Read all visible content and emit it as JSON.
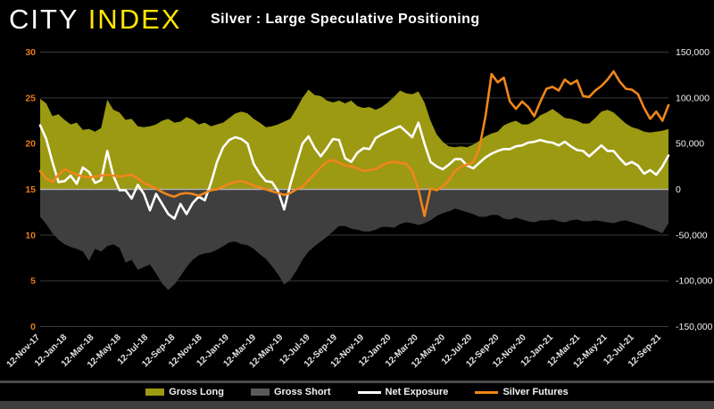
{
  "header": {
    "logo": {
      "city": "CITY",
      "index": "INDEX",
      "city_color": "#ffffff",
      "index_color": "#ffe600"
    },
    "title": "Silver : Large Speculative Positioning"
  },
  "chart_data": {
    "type": "combo",
    "title": "Silver : Large Speculative Positioning",
    "background": "#000000",
    "grid": true,
    "gridline_color": "#3a3a3a",
    "zero_line_color": "#b0b0b0",
    "legend_position": "bottom",
    "x_axis": {
      "tick_label_color": "#e3e3e3",
      "tick_labels": [
        "12-Nov-17",
        "12-Jan-18",
        "12-Mar-18",
        "12-May-18",
        "12-Jul-18",
        "12-Sep-18",
        "12-Nov-18",
        "12-Jan-19",
        "12-Mar-19",
        "12-May-19",
        "12-Jul-19",
        "12-Sep-19",
        "12-Nov-19",
        "12-Jan-20",
        "12-Mar-20",
        "12-May-20",
        "12-Jul-20",
        "12-Sep-20",
        "12-Nov-20",
        "12-Jan-21",
        "12-Mar-21",
        "12-May-21",
        "12-Jul-21",
        "12-Sep-21"
      ]
    },
    "left_axis": {
      "applies_to": "Silver Futures (price)",
      "min": 0,
      "max": 30,
      "tick_labels": [
        "0",
        "5",
        "10",
        "15",
        "20",
        "25",
        "30"
      ],
      "color": "#e87b17"
    },
    "right_axis": {
      "applies_to": "positioning (contracts)",
      "min": -150000,
      "max": 150000,
      "tick_labels": [
        "-150,000",
        "-100,000",
        "-50,000",
        "0",
        "50,000",
        "100,000",
        "150,000"
      ],
      "color": "#f0f0f0"
    },
    "series": [
      {
        "name": "Gross Long",
        "type": "area",
        "axis": "right",
        "color": "#9c9913",
        "unit": "thousand contracts",
        "values_thousands": [
          99,
          94,
          80,
          82,
          76,
          71,
          73,
          65,
          66,
          63,
          67,
          98,
          87,
          84,
          76,
          77,
          69,
          68,
          69,
          71,
          75,
          77,
          73,
          74,
          79,
          76,
          71,
          73,
          69,
          71,
          73,
          78,
          83,
          85,
          83,
          77,
          73,
          68,
          69,
          71,
          74,
          77,
          88,
          100,
          109,
          103,
          102,
          97,
          95,
          97,
          94,
          97,
          91,
          89,
          90,
          87,
          90,
          95,
          101,
          108,
          105,
          104,
          107,
          95,
          75,
          60,
          52,
          47,
          46,
          47,
          46,
          49,
          53,
          58,
          61,
          63,
          70,
          73,
          75,
          71,
          71,
          75,
          81,
          84,
          88,
          83,
          78,
          77,
          75,
          72,
          72,
          78,
          85,
          87,
          84,
          78,
          72,
          68,
          66,
          63,
          62,
          63,
          64,
          66
        ]
      },
      {
        "name": "Gross Short",
        "type": "area",
        "axis": "right",
        "color": "#3f3f3f",
        "legend_color": "#595959",
        "unit": "thousand contracts",
        "values_thousands": [
          -30,
          -38,
          -48,
          -55,
          -60,
          -63,
          -65,
          -68,
          -78,
          -65,
          -68,
          -62,
          -60,
          -64,
          -80,
          -77,
          -88,
          -85,
          -82,
          -92,
          -103,
          -110,
          -104,
          -95,
          -85,
          -77,
          -72,
          -70,
          -69,
          -66,
          -62,
          -58,
          -57,
          -60,
          -61,
          -65,
          -71,
          -76,
          -84,
          -93,
          -104,
          -99,
          -89,
          -77,
          -68,
          -62,
          -57,
          -52,
          -46,
          -40,
          -40,
          -43,
          -44,
          -46,
          -46,
          -44,
          -41,
          -41,
          -42,
          -38,
          -36,
          -37,
          -39,
          -37,
          -34,
          -29,
          -26,
          -24,
          -21,
          -23,
          -25,
          -27,
          -30,
          -30,
          -28,
          -28,
          -32,
          -33,
          -31,
          -33,
          -35,
          -36,
          -34,
          -34,
          -33,
          -35,
          -36,
          -34,
          -33,
          -35,
          -35,
          -34,
          -35,
          -36,
          -37,
          -35,
          -34,
          -36,
          -38,
          -40,
          -43,
          -45,
          -48,
          -37
        ]
      },
      {
        "name": "Net Exposure",
        "type": "line",
        "axis": "right",
        "color": "#ffffff",
        "unit": "thousand contracts",
        "values_thousands": [
          70,
          55,
          30,
          8,
          9,
          15,
          6,
          24,
          19,
          7,
          10,
          42,
          15,
          -1,
          -1,
          -10,
          5,
          -5,
          -23,
          -5,
          -16,
          -27,
          -32,
          -16,
          -27,
          -15,
          -8,
          -12,
          7,
          30,
          46,
          54,
          57,
          55,
          50,
          28,
          17,
          9,
          8,
          -2,
          -22,
          5,
          28,
          50,
          58,
          45,
          36,
          45,
          55,
          54,
          34,
          30,
          40,
          45,
          44,
          56,
          60,
          63,
          66,
          69,
          63,
          57,
          73,
          50,
          30,
          25,
          22,
          27,
          33,
          33,
          26,
          23,
          29,
          35,
          39,
          42,
          44,
          44,
          47,
          48,
          51,
          52,
          54,
          52,
          51,
          48,
          52,
          47,
          43,
          42,
          36,
          42,
          48,
          42,
          42,
          34,
          27,
          30,
          26,
          17,
          21,
          16,
          25,
          37
        ]
      },
      {
        "name": "Silver Futures",
        "type": "line",
        "axis": "left",
        "color": "#f0861a",
        "unit": "USD per oz",
        "values": [
          17.0,
          16.2,
          15.8,
          16.6,
          17.2,
          16.9,
          16.6,
          16.4,
          16.3,
          16.4,
          16.5,
          16.6,
          16.5,
          16.4,
          16.5,
          16.6,
          16.2,
          15.7,
          15.4,
          15.1,
          14.7,
          14.4,
          14.2,
          14.5,
          14.6,
          14.5,
          14.3,
          14.6,
          14.9,
          15.0,
          15.3,
          15.6,
          15.8,
          15.9,
          15.7,
          15.4,
          15.2,
          15.0,
          14.8,
          14.6,
          14.4,
          14.6,
          15.0,
          15.3,
          16.0,
          16.7,
          17.4,
          18.0,
          18.2,
          17.9,
          17.6,
          17.5,
          17.3,
          17.0,
          17.1,
          17.2,
          17.6,
          17.9,
          18.0,
          17.9,
          17.8,
          17.0,
          15.0,
          12.1,
          15.1,
          14.9,
          15.3,
          16.0,
          17.0,
          17.5,
          17.7,
          18.0,
          19.5,
          23.0,
          27.6,
          26.7,
          27.2,
          24.6,
          23.8,
          24.6,
          24.0,
          23.0,
          24.6,
          26.0,
          26.2,
          25.8,
          27.0,
          26.5,
          26.9,
          25.2,
          25.1,
          25.8,
          26.3,
          27.0,
          27.9,
          26.8,
          26.0,
          25.9,
          25.4,
          23.9,
          22.7,
          23.5,
          22.5,
          24.2
        ]
      }
    ]
  }
}
